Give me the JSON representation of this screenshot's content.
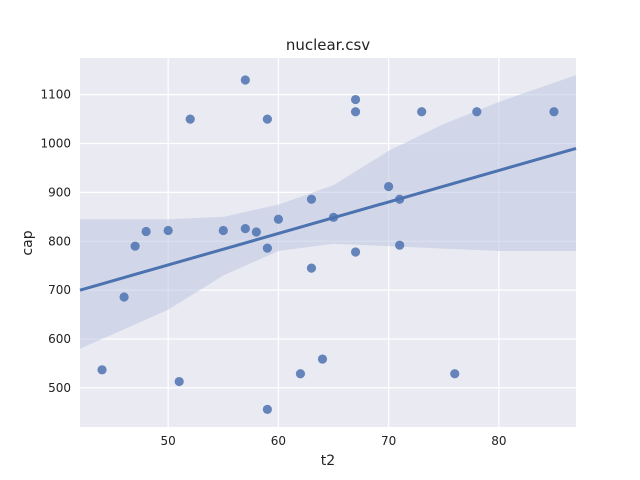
{
  "chart_data": {
    "type": "scatter",
    "title": "nuclear.csv",
    "xlabel": "t2",
    "ylabel": "cap",
    "xlim": [
      42,
      87
    ],
    "ylim": [
      420,
      1175
    ],
    "xticks": [
      50,
      60,
      70,
      80
    ],
    "yticks": [
      500,
      600,
      700,
      800,
      900,
      1000,
      1100
    ],
    "grid": true,
    "colors": {
      "background": "#eaeaf2",
      "grid": "#ffffff",
      "points": "#4c72b0",
      "line": "#4c72b0",
      "band": "#bcc6e0"
    },
    "points": [
      {
        "x": 44,
        "y": 537
      },
      {
        "x": 46,
        "y": 686
      },
      {
        "x": 47,
        "y": 790
      },
      {
        "x": 48,
        "y": 820
      },
      {
        "x": 50,
        "y": 822
      },
      {
        "x": 51,
        "y": 513
      },
      {
        "x": 52,
        "y": 1050
      },
      {
        "x": 55,
        "y": 822
      },
      {
        "x": 57,
        "y": 1130
      },
      {
        "x": 57,
        "y": 826
      },
      {
        "x": 58,
        "y": 819
      },
      {
        "x": 59,
        "y": 1050
      },
      {
        "x": 59,
        "y": 786
      },
      {
        "x": 59,
        "y": 456
      },
      {
        "x": 60,
        "y": 845
      },
      {
        "x": 62,
        "y": 529
      },
      {
        "x": 63,
        "y": 886
      },
      {
        "x": 63,
        "y": 745
      },
      {
        "x": 64,
        "y": 559
      },
      {
        "x": 65,
        "y": 849
      },
      {
        "x": 67,
        "y": 1090
      },
      {
        "x": 67,
        "y": 1065
      },
      {
        "x": 67,
        "y": 778
      },
      {
        "x": 70,
        "y": 912
      },
      {
        "x": 71,
        "y": 886
      },
      {
        "x": 71,
        "y": 792
      },
      {
        "x": 73,
        "y": 1065
      },
      {
        "x": 76,
        "y": 529
      },
      {
        "x": 78,
        "y": 1065
      },
      {
        "x": 85,
        "y": 1065
      }
    ],
    "regression_line": {
      "x": [
        42,
        87
      ],
      "y": [
        700,
        990
      ]
    },
    "confidence_band": {
      "x": [
        42,
        50,
        55,
        60,
        65,
        70,
        75,
        80,
        87
      ],
      "upper": [
        845,
        845,
        850,
        875,
        915,
        985,
        1040,
        1085,
        1140
      ],
      "lower": [
        580,
        660,
        730,
        780,
        795,
        790,
        785,
        780,
        780
      ]
    }
  }
}
